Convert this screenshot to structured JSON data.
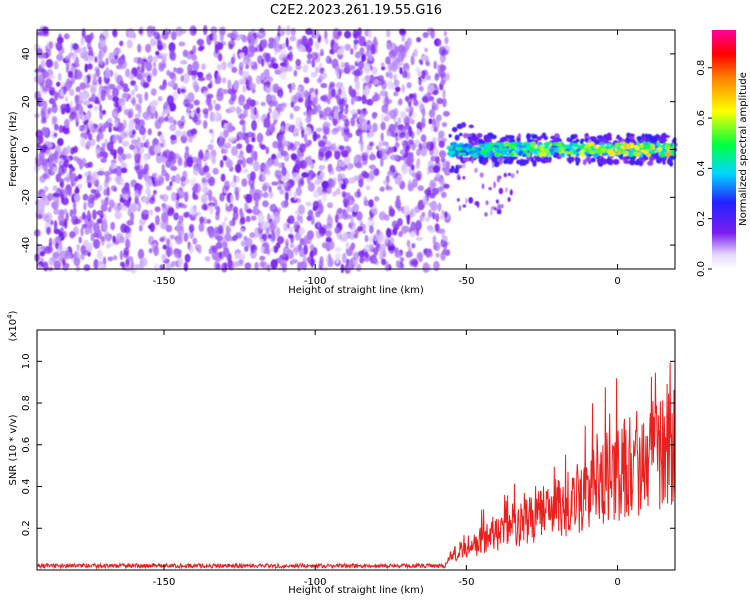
{
  "title": "C2E2.2023.261.19.55.G16",
  "chart_data": [
    {
      "type": "heatmap",
      "title": "C2E2.2023.261.19.55.G16",
      "xlabel": "Height of straight line (km)",
      "ylabel": "Frequency (Hz)",
      "xlim": [
        -192,
        19
      ],
      "ylim": [
        -50,
        50
      ],
      "xticks": [
        -150,
        -100,
        -50,
        0
      ],
      "yticks": [
        -40,
        -20,
        0,
        20,
        40
      ],
      "colorbar": {
        "label": "Normalized spectral amplitude",
        "range": [
          0,
          0.95
        ],
        "ticks": [
          0.0,
          0.2,
          0.4,
          0.6,
          0.8
        ],
        "colormap": "rainbow (white, violet, blue, cyan, green, yellow, orange, red, magenta)"
      },
      "regions": [
        {
          "x_range": [
            -192,
            -56
          ],
          "y_range": [
            -50,
            50
          ],
          "description": "broadband noise, amplitude 0.05-0.3"
        },
        {
          "x_range": [
            -56,
            19
          ],
          "y_center": 0,
          "y_halfwidth": 4,
          "amplitude_range": [
            0.2,
            0.95
          ]
        }
      ]
    },
    {
      "type": "line",
      "xlabel": "Height of straight line (km)",
      "ylabel": "SNR (10 * v/v)",
      "y_multiplier": "(x10^4)",
      "xlim": [
        -192,
        19
      ],
      "ylim": [
        0,
        1.15
      ],
      "xticks": [
        -150,
        -100,
        -50,
        0
      ],
      "yticks": [
        0.2,
        0.4,
        0.6,
        0.8,
        1.0
      ],
      "series": [
        {
          "color": "#e8201e",
          "x": [
            -192,
            -150,
            -100,
            -57,
            -55,
            -50,
            -45,
            -40,
            -35,
            -30,
            -25,
            -20,
            -15,
            -10,
            -5,
            0,
            5,
            10,
            15,
            19
          ],
          "y": [
            0.02,
            0.02,
            0.02,
            0.02,
            0.08,
            0.12,
            0.16,
            0.2,
            0.22,
            0.25,
            0.3,
            0.33,
            0.36,
            0.42,
            0.48,
            0.52,
            0.56,
            0.58,
            0.65,
            0.7
          ]
        }
      ]
    }
  ]
}
